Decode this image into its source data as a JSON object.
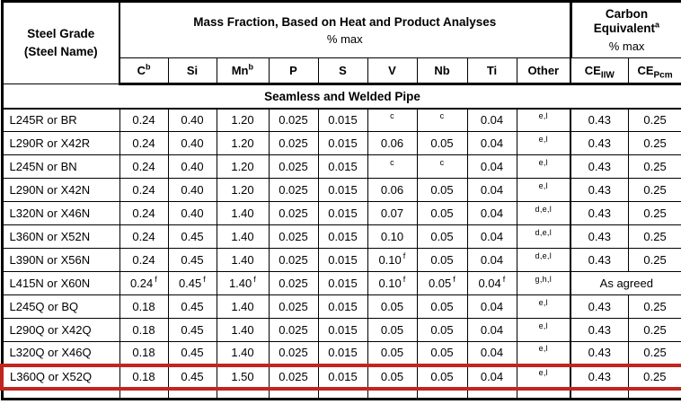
{
  "table": {
    "header": {
      "steel_grade_line1": "Steel Grade",
      "steel_grade_line2": "(Steel Name)",
      "mass_fraction_title": "Mass Fraction, Based on Heat and Product Analyses",
      "mass_fraction_sub": "% max",
      "carbon_equiv_title": "Carbon Equivalent",
      "carbon_equiv_mark": "a",
      "carbon_equiv_sub": "% max",
      "columns": [
        {
          "label": "C",
          "mark": "b"
        },
        {
          "label": "Si"
        },
        {
          "label": "Mn",
          "mark": "b"
        },
        {
          "label": "P"
        },
        {
          "label": "S"
        },
        {
          "label": "V"
        },
        {
          "label": "Nb"
        },
        {
          "label": "Ti"
        },
        {
          "label": "Other"
        },
        {
          "label": "CE",
          "sub": "IIW"
        },
        {
          "label": "CE",
          "sub": "Pcm"
        }
      ]
    },
    "section_title": "Seamless and Welded Pipe",
    "rows": [
      {
        "name": "L245R or BR",
        "cells": [
          {
            "v": "0.24"
          },
          {
            "v": "0.40"
          },
          {
            "v": "1.20"
          },
          {
            "v": "0.025"
          },
          {
            "v": "0.015"
          },
          {
            "f": "c"
          },
          {
            "f": "c"
          },
          {
            "v": "0.04"
          },
          {
            "f": "e,l"
          },
          {
            "v": "0.43"
          },
          {
            "v": "0.25"
          }
        ]
      },
      {
        "name": "L290R or X42R",
        "cells": [
          {
            "v": "0.24"
          },
          {
            "v": "0.40"
          },
          {
            "v": "1.20"
          },
          {
            "v": "0.025"
          },
          {
            "v": "0.015"
          },
          {
            "v": "0.06"
          },
          {
            "v": "0.05"
          },
          {
            "v": "0.04"
          },
          {
            "f": "e,l"
          },
          {
            "v": "0.43"
          },
          {
            "v": "0.25"
          }
        ]
      },
      {
        "name": "L245N or BN",
        "cells": [
          {
            "v": "0.24"
          },
          {
            "v": "0.40"
          },
          {
            "v": "1.20"
          },
          {
            "v": "0.025"
          },
          {
            "v": "0.015"
          },
          {
            "f": "c"
          },
          {
            "f": "c"
          },
          {
            "v": "0.04"
          },
          {
            "f": "e,l"
          },
          {
            "v": "0.43"
          },
          {
            "v": "0.25"
          }
        ]
      },
      {
        "name": "L290N or X42N",
        "cells": [
          {
            "v": "0.24"
          },
          {
            "v": "0.40"
          },
          {
            "v": "1.20"
          },
          {
            "v": "0.025"
          },
          {
            "v": "0.015"
          },
          {
            "v": "0.06"
          },
          {
            "v": "0.05"
          },
          {
            "v": "0.04"
          },
          {
            "f": "e,l"
          },
          {
            "v": "0.43"
          },
          {
            "v": "0.25"
          }
        ]
      },
      {
        "name": "L320N or X46N",
        "cells": [
          {
            "v": "0.24"
          },
          {
            "v": "0.40"
          },
          {
            "v": "1.40"
          },
          {
            "v": "0.025"
          },
          {
            "v": "0.015"
          },
          {
            "v": "0.07"
          },
          {
            "v": "0.05"
          },
          {
            "v": "0.04"
          },
          {
            "f": "d,e,l"
          },
          {
            "v": "0.43"
          },
          {
            "v": "0.25"
          }
        ]
      },
      {
        "name": "L360N or X52N",
        "cells": [
          {
            "v": "0.24"
          },
          {
            "v": "0.45"
          },
          {
            "v": "1.40"
          },
          {
            "v": "0.025"
          },
          {
            "v": "0.015"
          },
          {
            "v": "0.10"
          },
          {
            "v": "0.05"
          },
          {
            "v": "0.04"
          },
          {
            "f": "d,e,l"
          },
          {
            "v": "0.43"
          },
          {
            "v": "0.25"
          }
        ]
      },
      {
        "name": "L390N or X56N",
        "cells": [
          {
            "v": "0.24"
          },
          {
            "v": "0.45"
          },
          {
            "v": "1.40"
          },
          {
            "v": "0.025"
          },
          {
            "v": "0.015"
          },
          {
            "v": "0.10",
            "f": "f"
          },
          {
            "v": "0.05"
          },
          {
            "v": "0.04"
          },
          {
            "f": "d,e,l"
          },
          {
            "v": "0.43"
          },
          {
            "v": "0.25"
          }
        ]
      },
      {
        "name": "L415N or X60N",
        "cells": [
          {
            "v": "0.24",
            "f": "f"
          },
          {
            "v": "0.45",
            "f": "f"
          },
          {
            "v": "1.40",
            "f": "f"
          },
          {
            "v": "0.025"
          },
          {
            "v": "0.015"
          },
          {
            "v": "0.10",
            "f": "f"
          },
          {
            "v": "0.05",
            "f": "f"
          },
          {
            "v": "0.04",
            "f": "f"
          },
          {
            "f": "g,h,l"
          },
          {
            "v": "As agreed",
            "span": 2
          }
        ]
      },
      {
        "name": "L245Q or BQ",
        "cells": [
          {
            "v": "0.18"
          },
          {
            "v": "0.45"
          },
          {
            "v": "1.40"
          },
          {
            "v": "0.025"
          },
          {
            "v": "0.015"
          },
          {
            "v": "0.05"
          },
          {
            "v": "0.05"
          },
          {
            "v": "0.04"
          },
          {
            "f": "e,l"
          },
          {
            "v": "0.43"
          },
          {
            "v": "0.25"
          }
        ]
      },
      {
        "name": "L290Q or X42Q",
        "cells": [
          {
            "v": "0.18"
          },
          {
            "v": "0.45"
          },
          {
            "v": "1.40"
          },
          {
            "v": "0.025"
          },
          {
            "v": "0.015"
          },
          {
            "v": "0.05"
          },
          {
            "v": "0.05"
          },
          {
            "v": "0.04"
          },
          {
            "f": "e,l"
          },
          {
            "v": "0.43"
          },
          {
            "v": "0.25"
          }
        ]
      },
      {
        "name": "L320Q or X46Q",
        "cells": [
          {
            "v": "0.18"
          },
          {
            "v": "0.45"
          },
          {
            "v": "1.40"
          },
          {
            "v": "0.025"
          },
          {
            "v": "0.015"
          },
          {
            "v": "0.05"
          },
          {
            "v": "0.05"
          },
          {
            "v": "0.04"
          },
          {
            "f": "e,l"
          },
          {
            "v": "0.43"
          },
          {
            "v": "0.25"
          }
        ]
      },
      {
        "name": "L360Q or X52Q",
        "highlighted": true,
        "cells": [
          {
            "v": "0.18"
          },
          {
            "v": "0.45"
          },
          {
            "v": "1.50"
          },
          {
            "v": "0.025"
          },
          {
            "v": "0.015"
          },
          {
            "v": "0.05"
          },
          {
            "v": "0.05"
          },
          {
            "v": "0.04"
          },
          {
            "f": "e,l"
          },
          {
            "v": "0.43"
          },
          {
            "v": "0.25"
          }
        ]
      }
    ]
  },
  "highlight": {
    "row": "L360Q or X52Q",
    "color": "#c0261d"
  }
}
